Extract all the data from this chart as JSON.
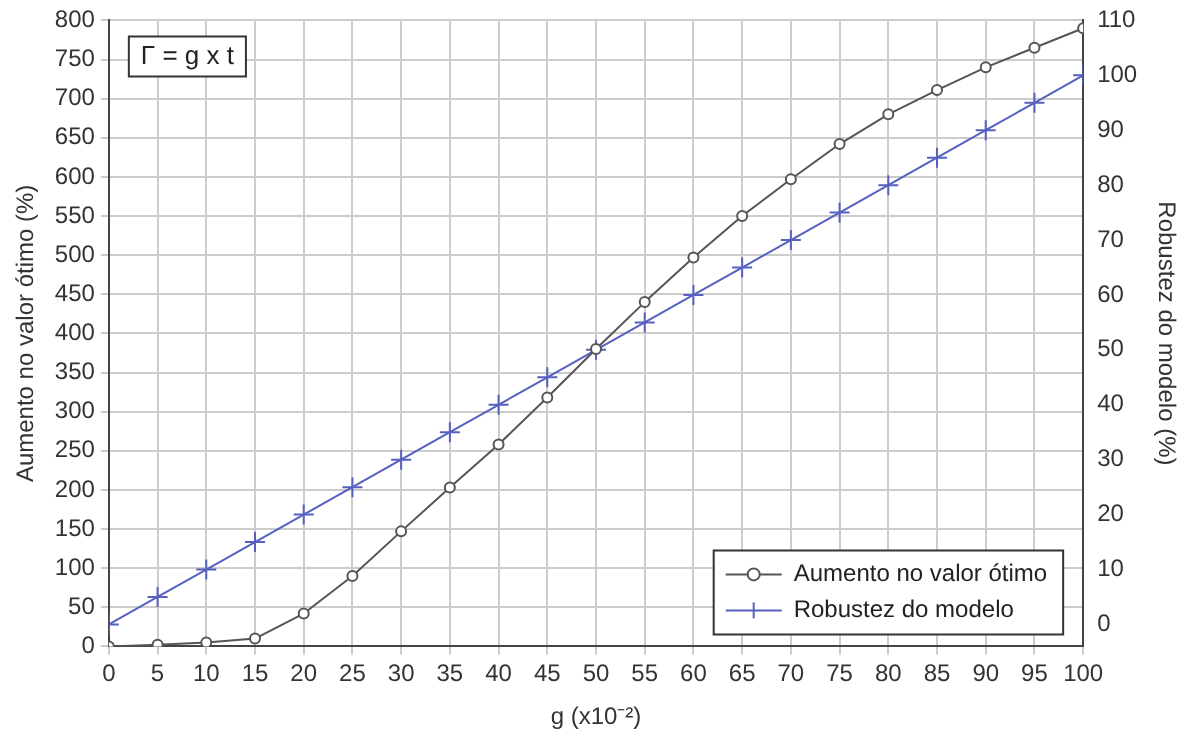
{
  "chart_data": {
    "type": "line",
    "xlabel": "g (x10⁻²)",
    "ylabel": "Aumento no valor ótimo (%)",
    "y2label": "Robustez do modelo (%)",
    "annotations": [
      "Γ = g x t"
    ],
    "x": [
      0,
      5,
      10,
      15,
      20,
      25,
      30,
      35,
      40,
      45,
      50,
      55,
      60,
      65,
      70,
      75,
      80,
      85,
      90,
      95,
      100
    ],
    "series": [
      {
        "name": "Aumento no valor ótimo",
        "color": "#555555",
        "marker": "circle",
        "values": [
          0,
          2,
          5,
          10,
          42,
          90,
          147,
          203,
          258,
          318,
          380,
          440,
          497,
          550,
          597,
          642,
          680,
          711,
          740,
          765,
          790
        ]
      },
      {
        "name": "Robustez do modelo",
        "color": "#5560c0",
        "marker": "cross",
        "axis": "y2",
        "values": [
          0,
          5,
          10,
          15,
          20,
          25,
          30,
          35,
          40,
          45,
          50,
          55,
          60,
          65,
          70,
          75,
          80,
          85,
          90,
          95,
          100
        ]
      }
    ],
    "xlim": [
      0,
      100
    ],
    "xticks": [
      0,
      5,
      10,
      15,
      20,
      25,
      30,
      35,
      40,
      45,
      50,
      55,
      60,
      65,
      70,
      75,
      80,
      85,
      90,
      95,
      100
    ],
    "ylim": [
      0,
      800
    ],
    "yticks": [
      0,
      50,
      100,
      150,
      200,
      250,
      300,
      350,
      400,
      450,
      500,
      550,
      600,
      650,
      700,
      750,
      800
    ],
    "y2lim": [
      -4,
      110
    ],
    "y2ticks": [
      0,
      10,
      20,
      30,
      40,
      50,
      60,
      70,
      80,
      90,
      100,
      110
    ],
    "grid": true,
    "legend": "bottom right",
    "line_style": "solid"
  }
}
